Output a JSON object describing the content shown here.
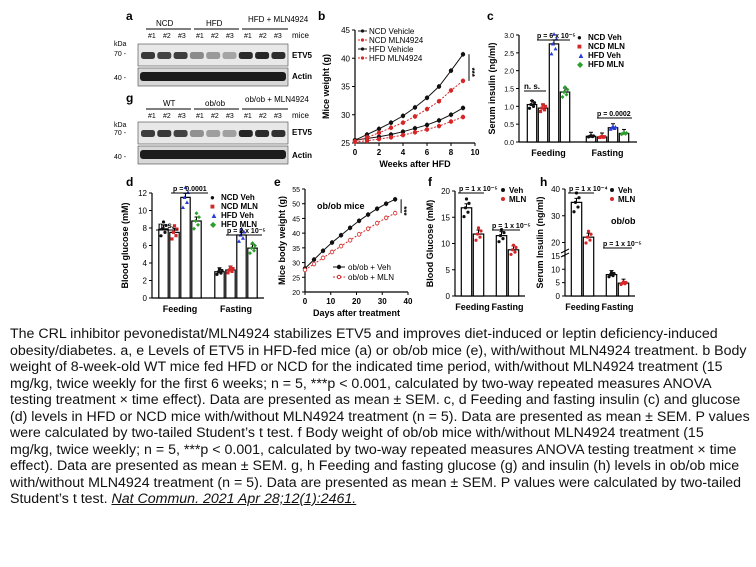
{
  "panel_letters": [
    "a",
    "b",
    "c",
    "d",
    "e",
    "f",
    "g",
    "h"
  ],
  "blot_a": {
    "groups": [
      "NCD",
      "HFD",
      "HFD + MLN4924"
    ],
    "lanes": [
      "#1",
      "#2",
      "#3"
    ],
    "mice_label": "mice",
    "kda_label": "kDa",
    "markers": [
      "70 -",
      "40 -"
    ],
    "bands": [
      "ETV5",
      "Actin"
    ]
  },
  "blot_e": {
    "groups": [
      "WT",
      "ob/ob",
      "ob/ob + MLN4924"
    ],
    "lanes": [
      "#1",
      "#2",
      "#3"
    ],
    "mice_label": "mice",
    "kda_label": "kDa",
    "markers": [
      "70 -",
      "40 -"
    ],
    "bands": [
      "ETV5",
      "Actin"
    ]
  },
  "chart_data": [
    {
      "panel": "b",
      "type": "line",
      "xlabel": "Weeks after HFD",
      "ylabel": "Mice weight (g)",
      "xlim": [
        0,
        10
      ],
      "ylim": [
        25,
        45
      ],
      "xticks": [
        "0",
        "2",
        "4",
        "6",
        "8",
        "10"
      ],
      "yticks": [
        "25",
        "30",
        "35",
        "40",
        "45"
      ],
      "x": [
        0,
        1,
        2,
        3,
        4,
        5,
        6,
        7,
        8,
        9
      ],
      "significance": "***",
      "series": [
        {
          "name": "NCD Vehicle",
          "color": "#111111",
          "values": [
            25.5,
            25.8,
            26.1,
            26.5,
            27.0,
            27.6,
            28.2,
            29.0,
            30.0,
            31.2
          ]
        },
        {
          "name": "NCD MLN4924",
          "color": "#d62728",
          "values": [
            25.2,
            25.4,
            25.7,
            26.0,
            26.4,
            26.9,
            27.4,
            28.0,
            28.8,
            29.6
          ]
        },
        {
          "name": "HFD Vehicle",
          "color": "#111111",
          "values": [
            25.5,
            26.5,
            27.5,
            28.6,
            29.8,
            31.3,
            33.0,
            35.0,
            37.8,
            40.7
          ]
        },
        {
          "name": "HFD MLN4924",
          "color": "#d62728",
          "values": [
            25.3,
            26.0,
            26.8,
            27.7,
            28.6,
            29.7,
            31.0,
            32.4,
            34.3,
            36.0
          ]
        }
      ]
    },
    {
      "panel": "c",
      "type": "bar",
      "ylabel": "Serum insulin (ng/ml)",
      "categories": [
        "Feeding",
        "Fasting"
      ],
      "yticks": [
        "0.0",
        "0.5",
        "1.0",
        "1.5",
        "2.0",
        "2.5",
        "3.0"
      ],
      "ylim": [
        0,
        3.0
      ],
      "annotations": [
        "n. s.",
        "p = 6 x 10⁻⁵",
        "p = 0.0002"
      ],
      "series": [
        {
          "name": "NCD Veh",
          "color": "#111111",
          "values": [
            1.05,
            0.16
          ]
        },
        {
          "name": "NCD MLN",
          "color": "#d62728",
          "values": [
            0.95,
            0.14
          ]
        },
        {
          "name": "HFD Veh",
          "color": "#2b3bd6",
          "values": [
            2.75,
            0.4
          ]
        },
        {
          "name": "HFD MLN",
          "color": "#2ca02c",
          "values": [
            1.4,
            0.24
          ]
        }
      ]
    },
    {
      "panel": "d",
      "type": "bar",
      "ylabel": "Blood glucose (mM)",
      "categories": [
        "Feeding",
        "Fasting"
      ],
      "yticks": [
        "0",
        "2",
        "4",
        "6",
        "8",
        "10",
        "12"
      ],
      "ylim": [
        0,
        12
      ],
      "annotations": [
        "n. s.",
        "p = 0.0001",
        "p = 2 x 10⁻⁵"
      ],
      "series": [
        {
          "name": "NCD Veh",
          "color": "#111111",
          "values": [
            7.9,
            3.0
          ]
        },
        {
          "name": "NCD MLN",
          "color": "#d62728",
          "values": [
            7.5,
            3.2
          ]
        },
        {
          "name": "HFD Veh",
          "color": "#2b3bd6",
          "values": [
            11.5,
            7.2
          ]
        },
        {
          "name": "HFD MLN",
          "color": "#2ca02c",
          "values": [
            8.8,
            5.7
          ]
        }
      ]
    },
    {
      "panel": "f",
      "type": "line",
      "inset_title": "ob/ob mice",
      "xlabel": "Days after treatment",
      "ylabel": "Mice body weight (g)",
      "xlim": [
        0,
        40
      ],
      "ylim": [
        20,
        55
      ],
      "xticks": [
        "0",
        "10",
        "20",
        "30",
        "40"
      ],
      "yticks": [
        "20",
        "25",
        "30",
        "35",
        "40",
        "45",
        "50",
        "55"
      ],
      "x": [
        0,
        3.5,
        7,
        10.5,
        14,
        17.5,
        21,
        24.5,
        28,
        31.5,
        35
      ],
      "significance": "***",
      "series": [
        {
          "name": "ob/ob + Veh",
          "color": "#111111",
          "values": [
            28.0,
            31.0,
            34.0,
            36.8,
            39.3,
            41.8,
            44.2,
            46.3,
            48.3,
            50.0,
            51.5
          ]
        },
        {
          "name": "ob/ob + MLN",
          "color": "#d62728",
          "values": [
            27.5,
            29.5,
            31.6,
            33.6,
            35.6,
            37.6,
            39.6,
            41.5,
            43.4,
            45.2,
            46.8
          ]
        }
      ]
    },
    {
      "panel": "g",
      "type": "bar",
      "ylabel": "Blood Glucose (mM)",
      "categories": [
        "Feeding",
        "Fasting"
      ],
      "yticks": [
        "0",
        "5",
        "10",
        "15",
        "20"
      ],
      "ylim": [
        0,
        20
      ],
      "annotations": [
        "p = 1 x 10⁻⁵",
        "p = 1 x 10⁻⁵"
      ],
      "series": [
        {
          "name": "Veh",
          "color": "#111111",
          "values": [
            16.8,
            11.5
          ]
        },
        {
          "name": "MLN",
          "color": "#d62728",
          "values": [
            11.8,
            8.8
          ]
        }
      ]
    },
    {
      "panel": "h",
      "type": "bar",
      "ylabel": "Serum Insulin (ng/ml)",
      "categories": [
        "Feeding",
        "Fasting"
      ],
      "yticks": [
        "0",
        "5",
        "10",
        "15",
        "20",
        "30",
        "40"
      ],
      "ylim": [
        0,
        40
      ],
      "inset_title": "ob/ob",
      "annotations": [
        "p = 1 x 10⁻⁴",
        "p = 1 x 10⁻⁵"
      ],
      "series": [
        {
          "name": "Veh",
          "color": "#111111",
          "values": [
            35.0,
            8.0
          ]
        },
        {
          "name": "MLN",
          "color": "#d62728",
          "values": [
            22.0,
            4.8
          ]
        }
      ]
    }
  ],
  "caption": {
    "text": "The CRL inhibitor pevonedistat/MLN4924 stabilizes ETV5 and improves diet-induced or leptin deficiency-induced obesity/diabetes. a, e Levels of ETV5 in HFD-fed mice (a) or ob/ob mice (e), with/without MLN4924 treatment. b Body weight of 8-week-old WT mice fed HFD or NCD for the indicated time period, with/without MLN4924 treatment (15 mg/kg, twice weekly for the first 6 weeks; n = 5, ***p < 0.001, calculated by two-way repeated measures ANOVA testing treatment × time effect). Data are presented as mean ± SEM. c, d Feeding and fasting insulin (c) and glucose (d) levels in HFD or NCD mice with/without MLN4924 treatment (n = 5). Data are presented as mean ± SEM. P values were calculated by two-tailed Student’s t test. f Body weight of ob/ob mice with/without MLN4924 treatment (15 mg/kg, twice weekly; n = 5, ***p < 0.001, calculated by two-way repeated measures ANOVA testing treatment × time effect). Data are presented as mean ± SEM. g, h Feeding and fasting glucose (g) and insulin (h) levels in ob/ob mice with/without MLN4924 treatment (n = 5). Data are presented as mean ± SEM. P values were calculated by two-tailed Student’s t test.",
    "citation": "Nat Commun. 2021 Apr 28;12(1):2461."
  }
}
